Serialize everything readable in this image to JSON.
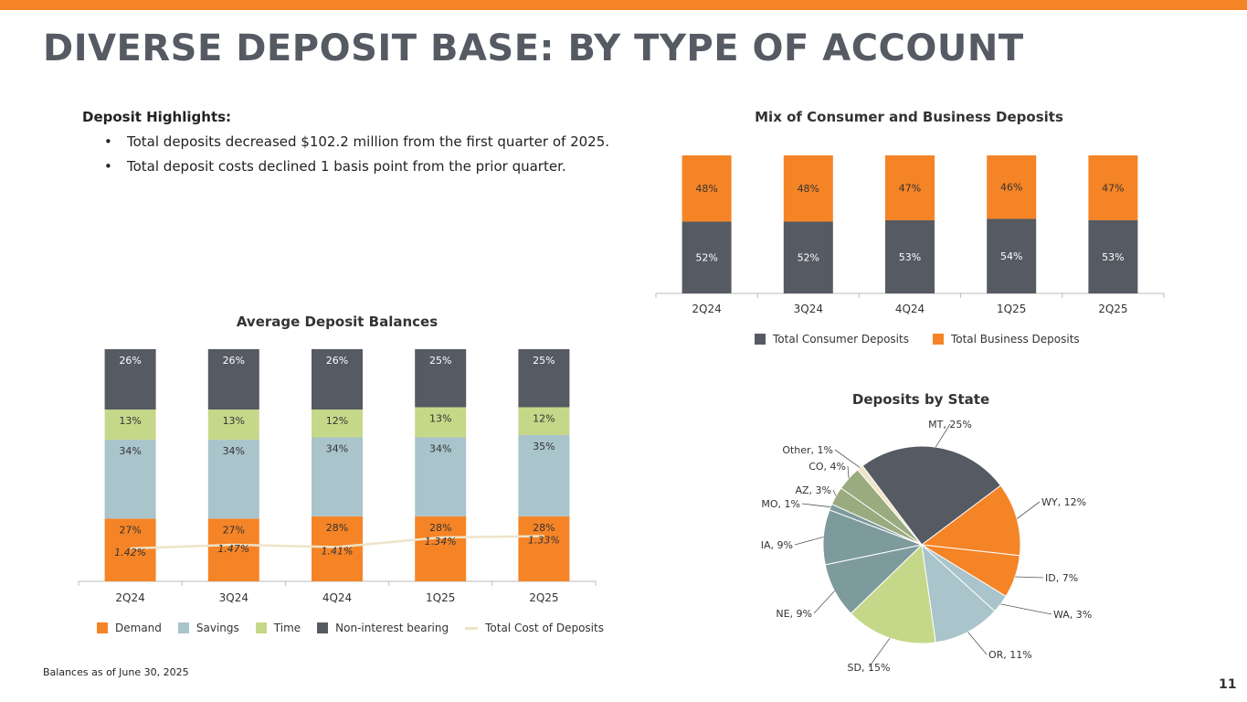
{
  "page": {
    "title": "DIVERSE DEPOSIT BASE: BY TYPE OF ACCOUNT",
    "highlights_heading": "Deposit Highlights:",
    "bullets": [
      "Total deposits decreased $102.2 million from the first quarter of 2025.",
      "Total deposit costs declined 1 basis point from the prior quarter."
    ],
    "bullet_glyph": "•",
    "footnote": "Balances as of June 30, 2025",
    "page_number": "11",
    "accent_color": "#f58426"
  },
  "chart_data": [
    {
      "type": "bar",
      "stacked": true,
      "title": "Average Deposit Balances",
      "categories": [
        "2Q24",
        "3Q24",
        "4Q24",
        "1Q25",
        "2Q25"
      ],
      "series": [
        {
          "name": "Demand",
          "color": "#f58426",
          "values": [
            27,
            27,
            28,
            28,
            28
          ],
          "labels": [
            "27%",
            "27%",
            "28%",
            "28%",
            "28%"
          ]
        },
        {
          "name": "Savings",
          "color": "#a9c4cb",
          "values": [
            34,
            34,
            34,
            34,
            35
          ],
          "labels": [
            "34%",
            "34%",
            "34%",
            "34%",
            "35%"
          ]
        },
        {
          "name": "Time",
          "color": "#c5d889",
          "values": [
            13,
            13,
            12,
            13,
            12
          ],
          "labels": [
            "13%",
            "13%",
            "12%",
            "13%",
            "12%"
          ]
        },
        {
          "name": "Non-interest bearing",
          "color": "#555a63",
          "values": [
            26,
            26,
            26,
            25,
            25
          ],
          "labels": [
            "26%",
            "26%",
            "26%",
            "25%",
            "25%"
          ]
        }
      ],
      "line_series": {
        "name": "Total Cost of Deposits",
        "color": "#efe3c8",
        "values": [
          1.42,
          1.47,
          1.41,
          1.34,
          1.33
        ],
        "labels": [
          "1.42%",
          "1.47%",
          "1.41%",
          "1.34%",
          "1.33%"
        ]
      },
      "legend": "bottom"
    },
    {
      "type": "bar",
      "stacked": true,
      "title": "Mix of Consumer and Business Deposits",
      "categories": [
        "2Q24",
        "3Q24",
        "4Q24",
        "1Q25",
        "2Q25"
      ],
      "series": [
        {
          "name": "Total Consumer Deposits",
          "color": "#555a63",
          "values": [
            52,
            52,
            53,
            54,
            53
          ],
          "labels": [
            "52%",
            "52%",
            "53%",
            "54%",
            "53%"
          ]
        },
        {
          "name": "Total Business Deposits",
          "color": "#f58426",
          "values": [
            48,
            48,
            47,
            46,
            47
          ],
          "labels": [
            "48%",
            "48%",
            "47%",
            "46%",
            "47%"
          ]
        }
      ],
      "legend": "bottom"
    },
    {
      "type": "pie",
      "title": "Deposits by State",
      "slices": [
        {
          "label": "MT, 25%",
          "value": 25,
          "color": "#555a63"
        },
        {
          "label": "WY, 12%",
          "value": 12,
          "color": "#f58426"
        },
        {
          "label": "ID, 7%",
          "value": 7,
          "color": "#f58426"
        },
        {
          "label": "WA, 3%",
          "value": 3,
          "color": "#a9c4cb"
        },
        {
          "label": "OR, 11%",
          "value": 11,
          "color": "#a9c4cb"
        },
        {
          "label": "SD, 15%",
          "value": 15,
          "color": "#c5d889"
        },
        {
          "label": "NE, 9%",
          "value": 9,
          "color": "#7d9a9d"
        },
        {
          "label": "IA, 9%",
          "value": 9,
          "color": "#7d9a9d"
        },
        {
          "label": "MO, 1%",
          "value": 1,
          "color": "#7d9a9d"
        },
        {
          "label": "AZ, 3%",
          "value": 3,
          "color": "#9aab7f"
        },
        {
          "label": "CO, 4%",
          "value": 4,
          "color": "#9aab7f"
        },
        {
          "label": "Other, 1%",
          "value": 1,
          "color": "#efe3c8"
        }
      ]
    }
  ]
}
